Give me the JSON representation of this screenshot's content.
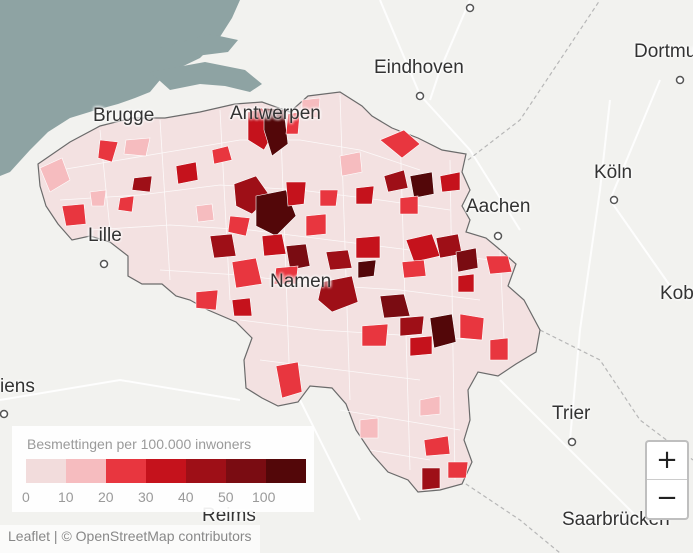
{
  "colors": {
    "sea": "#8ea3a3",
    "land": "#f1f1ee",
    "border": "#6b6b6b",
    "scale": [
      "#f2dcdc",
      "#f6bcbf",
      "#e8363f",
      "#c5121c",
      "#9e0f17",
      "#7a0c12",
      "#530709"
    ]
  },
  "map": {
    "cities": [
      "Eindhoven",
      "Dortmu",
      "Brugge",
      "Antwerpen",
      "Köln",
      "Aachen",
      "Lille",
      "Namen",
      "Kob",
      "iens",
      "Trier",
      "Reims",
      "Saarbrücken"
    ]
  },
  "legend": {
    "title": "Besmettingen per 100.000 inwoners",
    "ticks": [
      "0",
      "10",
      "20",
      "30",
      "40",
      "50",
      "100"
    ]
  },
  "zoom": {
    "in": "+",
    "out": "−"
  },
  "attribution": {
    "leaflet": "Leaflet",
    "sep": " | © ",
    "osm": "OpenStreetMap",
    "contrib": " contributors"
  }
}
